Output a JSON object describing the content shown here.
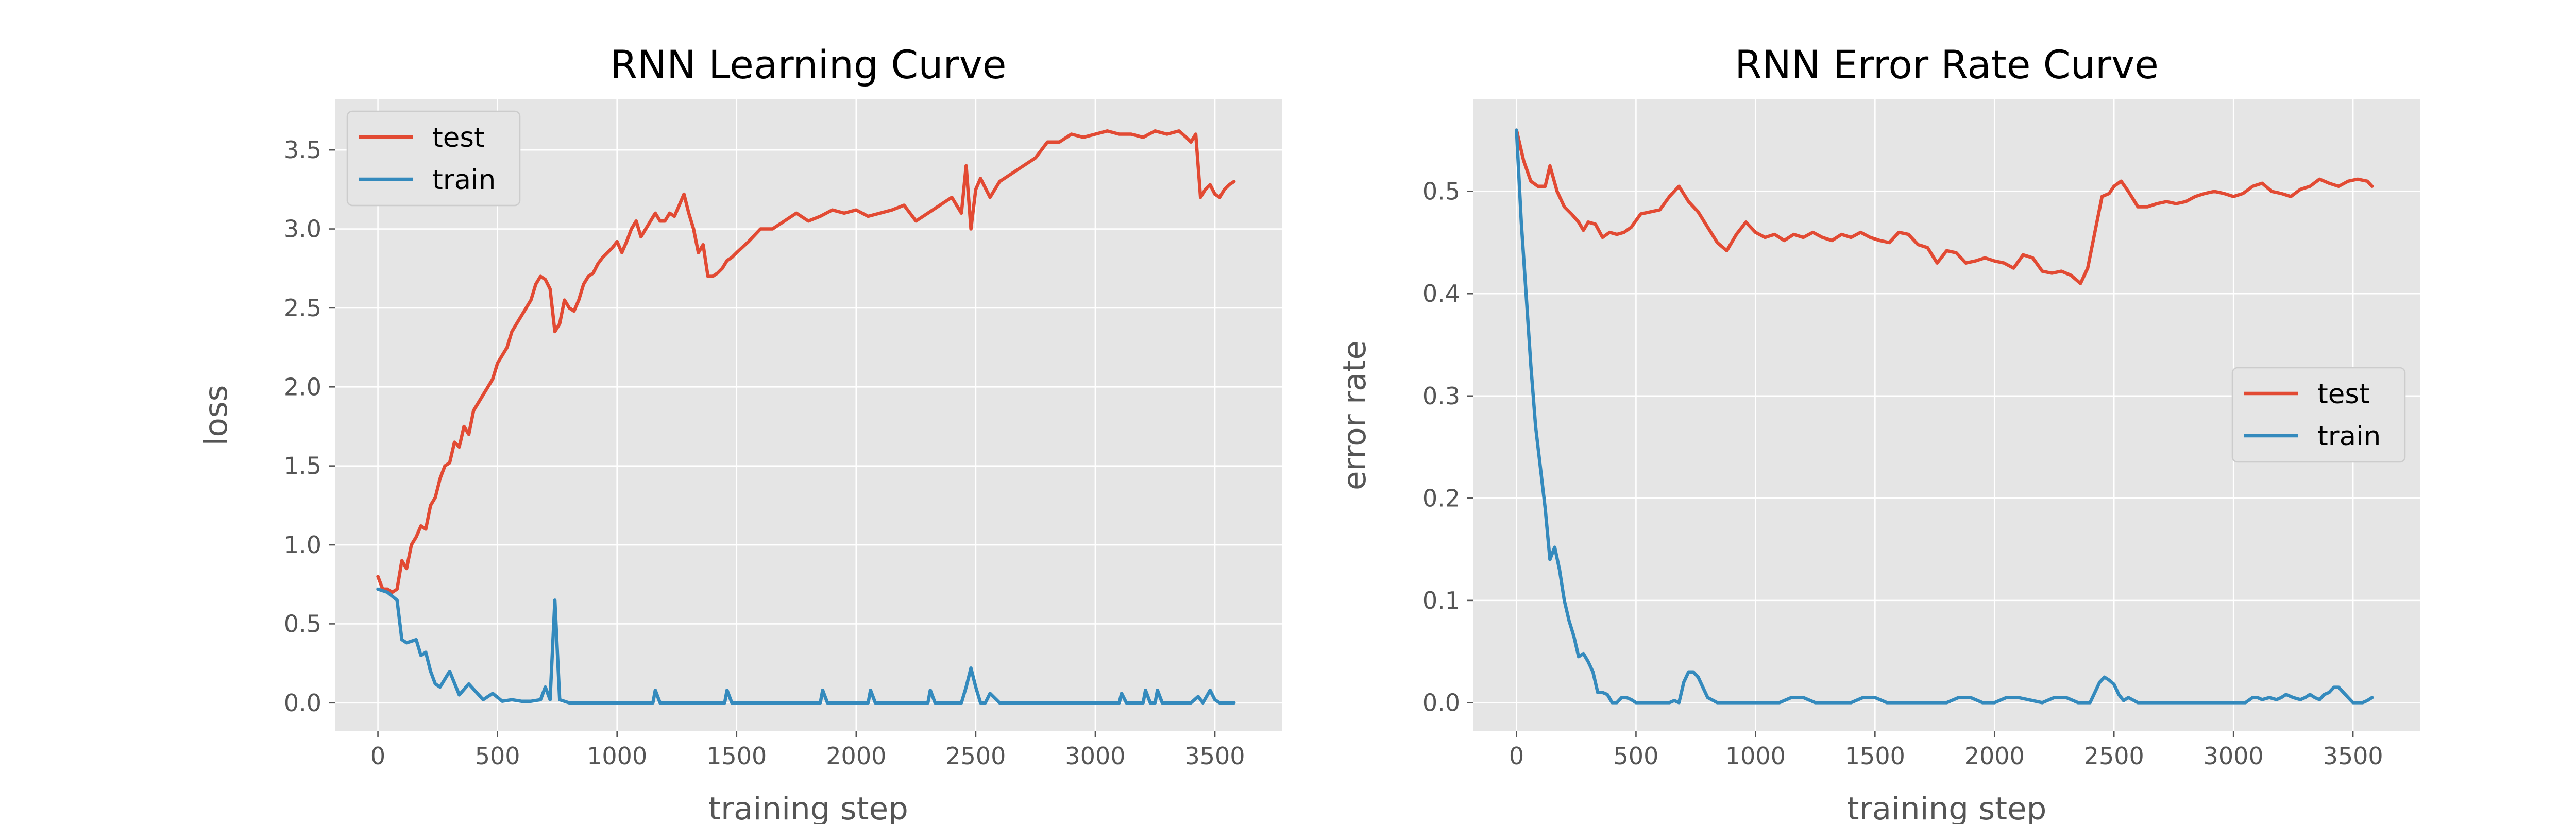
{
  "colors": {
    "test": "#e24a33",
    "train": "#348abd"
  },
  "chart_data": [
    {
      "type": "line",
      "title": "RNN Learning Curve",
      "xlabel": "training step",
      "ylabel": "loss",
      "xlim": [
        -180,
        3780
      ],
      "ylim": [
        -0.18,
        3.82
      ],
      "xticks": [
        0,
        500,
        1000,
        1500,
        2000,
        2500,
        3000,
        3500
      ],
      "yticks": [
        0.0,
        0.5,
        1.0,
        1.5,
        2.0,
        2.5,
        3.0,
        3.5
      ],
      "ytick_labels": [
        "0.0",
        "0.5",
        "1.0",
        "1.5",
        "2.0",
        "2.5",
        "3.0",
        "3.5"
      ],
      "grid": true,
      "legend_position": "upper-left",
      "series": [
        {
          "name": "test",
          "color": "#e24a33",
          "x": [
            0,
            20,
            40,
            60,
            80,
            100,
            120,
            140,
            160,
            180,
            200,
            220,
            240,
            260,
            280,
            300,
            320,
            340,
            360,
            380,
            400,
            420,
            440,
            460,
            480,
            500,
            520,
            540,
            560,
            580,
            600,
            620,
            640,
            660,
            680,
            700,
            720,
            740,
            760,
            780,
            800,
            820,
            840,
            860,
            880,
            900,
            920,
            940,
            960,
            980,
            1000,
            1020,
            1040,
            1060,
            1080,
            1100,
            1120,
            1140,
            1160,
            1180,
            1200,
            1220,
            1240,
            1260,
            1280,
            1300,
            1320,
            1340,
            1360,
            1380,
            1400,
            1420,
            1440,
            1460,
            1480,
            1500,
            1550,
            1600,
            1650,
            1700,
            1750,
            1800,
            1850,
            1900,
            1950,
            2000,
            2050,
            2100,
            2150,
            2200,
            2250,
            2300,
            2350,
            2400,
            2440,
            2460,
            2480,
            2500,
            2520,
            2560,
            2600,
            2650,
            2700,
            2750,
            2800,
            2850,
            2900,
            2950,
            3000,
            3050,
            3100,
            3150,
            3200,
            3250,
            3300,
            3350,
            3380,
            3400,
            3420,
            3440,
            3460,
            3480,
            3500,
            3520,
            3540,
            3560,
            3580
          ],
          "values": [
            0.8,
            0.72,
            0.72,
            0.7,
            0.72,
            0.9,
            0.85,
            1.0,
            1.05,
            1.12,
            1.1,
            1.25,
            1.3,
            1.42,
            1.5,
            1.52,
            1.65,
            1.62,
            1.75,
            1.7,
            1.85,
            1.9,
            1.95,
            2.0,
            2.05,
            2.15,
            2.2,
            2.25,
            2.35,
            2.4,
            2.45,
            2.5,
            2.55,
            2.65,
            2.7,
            2.68,
            2.62,
            2.35,
            2.4,
            2.55,
            2.5,
            2.48,
            2.55,
            2.65,
            2.7,
            2.72,
            2.78,
            2.82,
            2.85,
            2.88,
            2.92,
            2.85,
            2.92,
            3.0,
            3.05,
            2.95,
            3.0,
            3.05,
            3.1,
            3.05,
            3.05,
            3.1,
            3.08,
            3.15,
            3.22,
            3.1,
            3.0,
            2.85,
            2.9,
            2.7,
            2.7,
            2.72,
            2.75,
            2.8,
            2.82,
            2.85,
            2.92,
            3.0,
            3.0,
            3.05,
            3.1,
            3.05,
            3.08,
            3.12,
            3.1,
            3.12,
            3.08,
            3.1,
            3.12,
            3.15,
            3.05,
            3.1,
            3.15,
            3.2,
            3.1,
            3.4,
            3.0,
            3.25,
            3.32,
            3.2,
            3.3,
            3.35,
            3.4,
            3.45,
            3.55,
            3.55,
            3.6,
            3.58,
            3.6,
            3.62,
            3.6,
            3.6,
            3.58,
            3.62,
            3.6,
            3.62,
            3.58,
            3.55,
            3.6,
            3.2,
            3.25,
            3.28,
            3.22,
            3.2,
            3.25,
            3.28,
            3.3
          ]
        },
        {
          "name": "train",
          "color": "#348abd",
          "x": [
            0,
            40,
            80,
            100,
            120,
            160,
            180,
            200,
            220,
            240,
            260,
            300,
            340,
            380,
            440,
            480,
            520,
            560,
            600,
            640,
            680,
            700,
            720,
            740,
            760,
            800,
            900,
            1000,
            1100,
            1150,
            1160,
            1180,
            1300,
            1400,
            1450,
            1460,
            1480,
            1600,
            1800,
            1850,
            1860,
            1880,
            2000,
            2050,
            2060,
            2080,
            2200,
            2300,
            2310,
            2330,
            2440,
            2460,
            2480,
            2500,
            2520,
            2540,
            2560,
            2600,
            2800,
            3000,
            3100,
            3110,
            3130,
            3200,
            3210,
            3230,
            3250,
            3260,
            3280,
            3400,
            3430,
            3450,
            3480,
            3500,
            3520,
            3580
          ],
          "values": [
            0.72,
            0.7,
            0.65,
            0.4,
            0.38,
            0.4,
            0.3,
            0.32,
            0.2,
            0.12,
            0.1,
            0.2,
            0.05,
            0.12,
            0.02,
            0.06,
            0.01,
            0.02,
            0.01,
            0.01,
            0.02,
            0.1,
            0.02,
            0.65,
            0.02,
            0.0,
            0.0,
            0.0,
            0.0,
            0.0,
            0.08,
            0.0,
            0.0,
            0.0,
            0.0,
            0.08,
            0.0,
            0.0,
            0.0,
            0.0,
            0.08,
            0.0,
            0.0,
            0.0,
            0.08,
            0.0,
            0.0,
            0.0,
            0.08,
            0.0,
            0.0,
            0.1,
            0.22,
            0.1,
            0.0,
            0.0,
            0.06,
            0.0,
            0.0,
            0.0,
            0.0,
            0.06,
            0.0,
            0.0,
            0.08,
            0.0,
            0.0,
            0.08,
            0.0,
            0.0,
            0.04,
            0.0,
            0.08,
            0.02,
            0.0,
            0.0
          ]
        }
      ]
    },
    {
      "type": "line",
      "title": "RNN Error Rate Curve",
      "xlabel": "training step",
      "ylabel": "error rate",
      "xlim": [
        -180,
        3780
      ],
      "ylim": [
        -0.028,
        0.59
      ],
      "xticks": [
        0,
        500,
        1000,
        1500,
        2000,
        2500,
        3000,
        3500
      ],
      "yticks": [
        0.0,
        0.1,
        0.2,
        0.3,
        0.4,
        0.5
      ],
      "ytick_labels": [
        "0.0",
        "0.1",
        "0.2",
        "0.3",
        "0.4",
        "0.5"
      ],
      "grid": true,
      "legend_position": "center-right",
      "series": [
        {
          "name": "test",
          "color": "#e24a33",
          "x": [
            0,
            30,
            60,
            90,
            120,
            140,
            170,
            200,
            230,
            260,
            280,
            300,
            330,
            360,
            390,
            420,
            450,
            480,
            520,
            560,
            600,
            640,
            680,
            720,
            760,
            800,
            840,
            880,
            920,
            960,
            1000,
            1040,
            1080,
            1120,
            1160,
            1200,
            1240,
            1280,
            1320,
            1360,
            1400,
            1440,
            1480,
            1520,
            1560,
            1600,
            1640,
            1680,
            1720,
            1760,
            1800,
            1840,
            1880,
            1920,
            1960,
            2000,
            2040,
            2080,
            2120,
            2160,
            2200,
            2240,
            2280,
            2320,
            2360,
            2390,
            2420,
            2450,
            2480,
            2500,
            2530,
            2560,
            2600,
            2640,
            2680,
            2720,
            2760,
            2800,
            2840,
            2880,
            2920,
            2960,
            3000,
            3040,
            3080,
            3120,
            3160,
            3200,
            3240,
            3280,
            3320,
            3360,
            3400,
            3440,
            3480,
            3520,
            3560,
            3580
          ],
          "values": [
            0.56,
            0.53,
            0.51,
            0.505,
            0.505,
            0.525,
            0.5,
            0.485,
            0.478,
            0.47,
            0.462,
            0.47,
            0.468,
            0.455,
            0.46,
            0.458,
            0.46,
            0.465,
            0.478,
            0.48,
            0.482,
            0.495,
            0.505,
            0.49,
            0.48,
            0.465,
            0.45,
            0.442,
            0.458,
            0.47,
            0.46,
            0.455,
            0.458,
            0.452,
            0.458,
            0.455,
            0.46,
            0.455,
            0.452,
            0.458,
            0.455,
            0.46,
            0.455,
            0.452,
            0.45,
            0.46,
            0.458,
            0.448,
            0.445,
            0.43,
            0.442,
            0.44,
            0.43,
            0.432,
            0.435,
            0.432,
            0.43,
            0.425,
            0.438,
            0.435,
            0.422,
            0.42,
            0.422,
            0.418,
            0.41,
            0.425,
            0.46,
            0.495,
            0.498,
            0.505,
            0.51,
            0.5,
            0.485,
            0.485,
            0.488,
            0.49,
            0.488,
            0.49,
            0.495,
            0.498,
            0.5,
            0.498,
            0.495,
            0.498,
            0.505,
            0.508,
            0.5,
            0.498,
            0.495,
            0.502,
            0.505,
            0.512,
            0.508,
            0.505,
            0.51,
            0.512,
            0.51,
            0.505
          ]
        },
        {
          "name": "train",
          "color": "#348abd",
          "x": [
            0,
            20,
            40,
            60,
            80,
            100,
            120,
            140,
            160,
            180,
            200,
            220,
            240,
            260,
            280,
            300,
            320,
            340,
            360,
            380,
            400,
            420,
            440,
            460,
            480,
            500,
            520,
            560,
            600,
            640,
            660,
            680,
            700,
            720,
            740,
            760,
            780,
            800,
            840,
            900,
            1000,
            1100,
            1150,
            1200,
            1250,
            1400,
            1450,
            1500,
            1550,
            1700,
            1800,
            1850,
            1900,
            1950,
            2000,
            2050,
            2100,
            2200,
            2250,
            2300,
            2350,
            2400,
            2420,
            2440,
            2460,
            2480,
            2500,
            2520,
            2540,
            2560,
            2600,
            2800,
            3000,
            3050,
            3080,
            3100,
            3120,
            3150,
            3180,
            3200,
            3220,
            3250,
            3280,
            3300,
            3320,
            3340,
            3360,
            3380,
            3400,
            3420,
            3440,
            3460,
            3480,
            3500,
            3520,
            3540,
            3560,
            3580
          ],
          "values": [
            0.56,
            0.47,
            0.4,
            0.33,
            0.27,
            0.23,
            0.19,
            0.14,
            0.152,
            0.13,
            0.1,
            0.08,
            0.065,
            0.045,
            0.048,
            0.04,
            0.03,
            0.01,
            0.01,
            0.008,
            0.0,
            0.0,
            0.005,
            0.005,
            0.003,
            0.0,
            0.0,
            0.0,
            0.0,
            0.0,
            0.002,
            0.0,
            0.02,
            0.03,
            0.03,
            0.025,
            0.015,
            0.005,
            0.0,
            0.0,
            0.0,
            0.0,
            0.005,
            0.005,
            0.0,
            0.0,
            0.005,
            0.005,
            0.0,
            0.0,
            0.0,
            0.005,
            0.005,
            0.0,
            0.0,
            0.005,
            0.005,
            0.0,
            0.005,
            0.005,
            0.0,
            0.0,
            0.01,
            0.02,
            0.025,
            0.022,
            0.018,
            0.008,
            0.002,
            0.005,
            0.0,
            0.0,
            0.0,
            0.0,
            0.005,
            0.005,
            0.003,
            0.005,
            0.003,
            0.005,
            0.008,
            0.005,
            0.003,
            0.005,
            0.008,
            0.005,
            0.003,
            0.008,
            0.01,
            0.015,
            0.015,
            0.01,
            0.005,
            0.0,
            0.0,
            0.0,
            0.002,
            0.005
          ]
        }
      ]
    }
  ]
}
